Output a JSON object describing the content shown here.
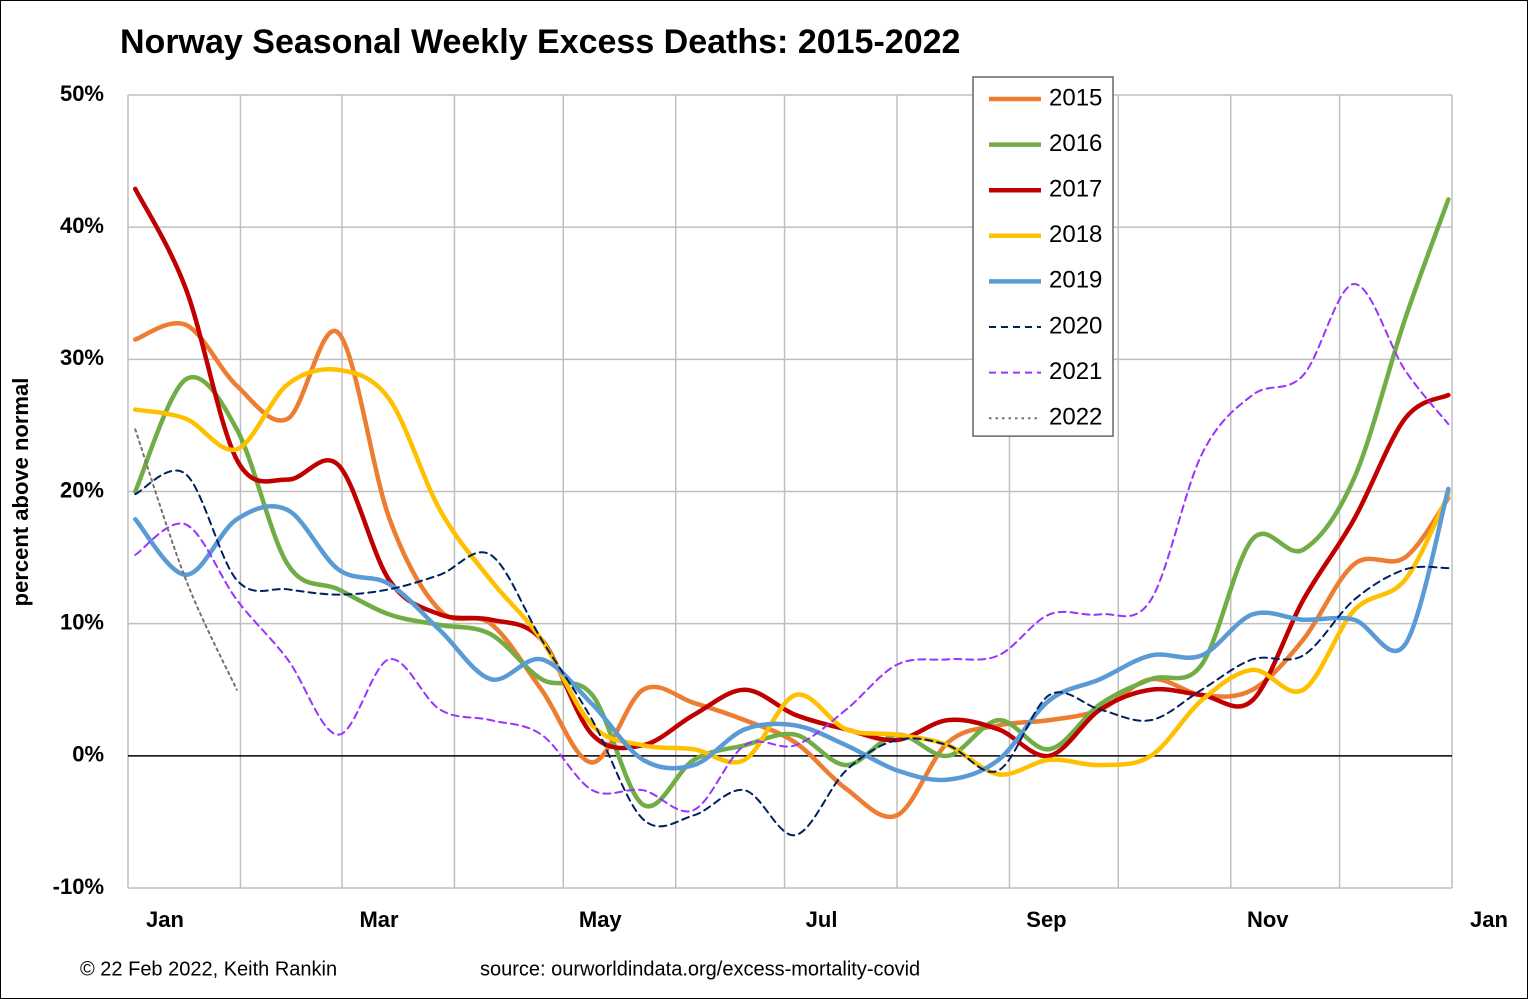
{
  "chart_data": {
    "type": "line",
    "title": "Norway Seasonal Weekly Excess Deaths: 2015-2022",
    "ylabel": "percent above normal",
    "footer_left": "© 22 Feb 2022, Keith Rankin",
    "footer_right": "source: ourworldindata.org/excess-mortality-covid",
    "xlim": [
      0,
      365
    ],
    "xticks": [
      0,
      31,
      59,
      90,
      120,
      151,
      181,
      212,
      243,
      273,
      304,
      334,
      365
    ],
    "xtick_labels": [
      {
        "value": 0,
        "label": "Jan"
      },
      {
        "value": 59,
        "label": "Mar"
      },
      {
        "value": 120,
        "label": "May"
      },
      {
        "value": 181,
        "label": "Jul"
      },
      {
        "value": 243,
        "label": "Sep"
      },
      {
        "value": 304,
        "label": "Nov"
      },
      {
        "value": 365,
        "label": "Jan"
      }
    ],
    "ylim": [
      -10,
      50
    ],
    "yticks": [
      {
        "value": -10,
        "label": "-10%"
      },
      {
        "value": 0,
        "label": "0%"
      },
      {
        "value": 10,
        "label": "10%"
      },
      {
        "value": 20,
        "label": "20%"
      },
      {
        "value": 30,
        "label": "30%"
      },
      {
        "value": 40,
        "label": "40%"
      },
      {
        "value": 50,
        "label": "50%"
      }
    ],
    "grid": true,
    "legend": "upper right",
    "x": [
      2,
      16,
      30,
      44,
      58,
      72,
      86,
      100,
      114,
      128,
      142,
      156,
      170,
      184,
      198,
      212,
      226,
      240,
      254,
      268,
      282,
      296,
      310,
      324,
      338,
      352,
      364
    ],
    "series": [
      {
        "name": "2015",
        "color": "#ed7d31",
        "style": "solid",
        "values": [
          31.5,
          32.6,
          28,
          25.5,
          32,
          18,
          11,
          10,
          5,
          -0.5,
          5,
          4,
          2.7,
          1,
          -2.5,
          -4.5,
          1,
          2.3,
          2.7,
          3.5,
          5.8,
          4.6,
          5,
          8.8,
          14.5,
          15,
          19.5
        ]
      },
      {
        "name": "2016",
        "color": "#70ad47",
        "style": "solid",
        "values": [
          20,
          28.5,
          24.7,
          14.5,
          12.6,
          10.7,
          9.9,
          9.2,
          5.8,
          4.6,
          -3.7,
          -0.3,
          0.8,
          1.6,
          -0.7,
          1.6,
          0,
          2.7,
          0.5,
          3.9,
          5.8,
          6.9,
          16.4,
          15.6,
          21,
          33,
          42.1
        ]
      },
      {
        "name": "2017",
        "color": "#c00000",
        "style": "solid",
        "values": [
          42.9,
          35.3,
          22.4,
          20.9,
          22,
          13.3,
          10.7,
          10.3,
          8.8,
          1.6,
          0.8,
          3.1,
          5,
          3.1,
          2,
          1.2,
          2.7,
          2,
          0,
          3.5,
          5,
          4.6,
          4.2,
          11.8,
          17.9,
          25.5,
          27.3
        ]
      },
      {
        "name": "2018",
        "color": "#ffc000",
        "style": "solid",
        "values": [
          26.2,
          25.5,
          23.2,
          28.1,
          29.2,
          27,
          18.6,
          13.3,
          8.8,
          2.3,
          0.8,
          0.5,
          -0.3,
          4.6,
          2,
          1.6,
          0.8,
          -1.4,
          -0.3,
          -0.7,
          0,
          4.2,
          6.5,
          5,
          11,
          13.3,
          19.8
        ]
      },
      {
        "name": "2019",
        "color": "#5b9bd5",
        "style": "solid",
        "values": [
          17.9,
          13.7,
          17.9,
          18.6,
          14.1,
          13,
          9.5,
          5.8,
          7.3,
          3.9,
          -0.3,
          -0.7,
          2,
          2.3,
          0.8,
          -1.1,
          -1.8,
          -0.3,
          4.2,
          5.8,
          7.6,
          7.6,
          10.7,
          10.3,
          10.3,
          8.4,
          20.2
        ]
      },
      {
        "name": "2020",
        "color": "#002060",
        "style": "dashed",
        "values": [
          19.8,
          21.3,
          13.3,
          12.6,
          12.2,
          12.6,
          13.7,
          15.2,
          8.8,
          2.7,
          -4.8,
          -4.5,
          -2.6,
          -6,
          -1.1,
          1.2,
          0.8,
          -1.1,
          4.6,
          3.5,
          2.7,
          5,
          7.3,
          7.6,
          11.8,
          14.1,
          14.2
        ]
      },
      {
        "name": "2021",
        "color": "#9933ff",
        "style": "dashed",
        "values": [
          15.2,
          17.5,
          11.8,
          7.3,
          1.6,
          7.3,
          3.5,
          2.7,
          1.6,
          -2.6,
          -2.6,
          -4.1,
          0.8,
          0.8,
          3.5,
          6.9,
          7.3,
          7.6,
          10.7,
          10.7,
          11.8,
          22.8,
          27.3,
          28.8,
          35.7,
          29.2,
          25.1
        ]
      },
      {
        "name": "2022",
        "color": "#767171",
        "style": "dotted",
        "values": [
          24.7,
          13.3,
          5,
          null,
          null,
          null,
          null,
          null,
          null,
          null,
          null,
          null,
          null,
          null,
          null,
          null,
          null,
          null,
          null,
          null,
          null,
          null,
          null,
          null,
          null,
          null,
          null
        ]
      }
    ]
  }
}
